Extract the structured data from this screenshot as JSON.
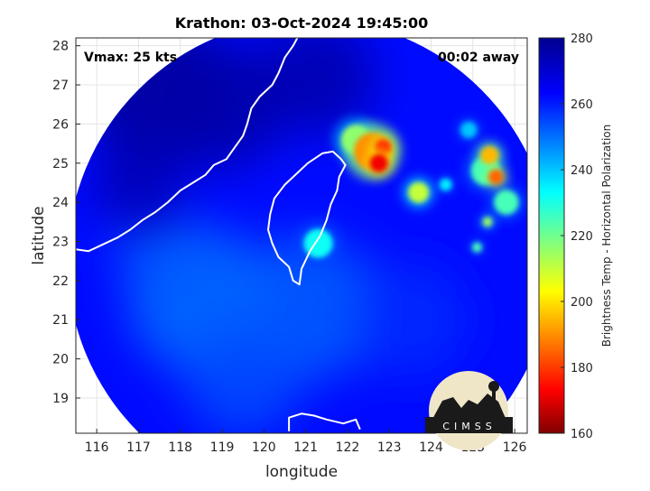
{
  "chart_data": {
    "type": "heatmap",
    "title": "Krathon: 03-Oct-2024 19:45:00",
    "xlabel": "longitude",
    "ylabel": "latitude",
    "xlim": [
      115.5,
      126.3
    ],
    "ylim": [
      18.1,
      28.2
    ],
    "xticks": [
      116,
      117,
      118,
      119,
      120,
      121,
      122,
      123,
      124,
      125,
      126
    ],
    "yticks": [
      19,
      20,
      21,
      22,
      23,
      24,
      25,
      26,
      27,
      28
    ],
    "grid": true,
    "annotations": {
      "vmax": "Vmax: 25 kts",
      "away": "00:02 away"
    },
    "colorbar": {
      "label": "Brightness Temp - Horizontal Polarization",
      "range": [
        160,
        280
      ],
      "ticks": [
        160,
        180,
        200,
        220,
        240,
        260,
        280
      ],
      "colormap": "jet"
    },
    "footprint": {
      "center_lon": 121.1,
      "center_lat": 22.5,
      "radius_deg": 5.8
    },
    "background_value": 262,
    "cold_features": [
      {
        "lon": 122.6,
        "lat": 25.3,
        "value": 190,
        "size": 0.45
      },
      {
        "lon": 122.75,
        "lat": 25.0,
        "value": 172,
        "size": 0.22
      },
      {
        "lon": 122.85,
        "lat": 25.4,
        "value": 178,
        "size": 0.2
      },
      {
        "lon": 122.2,
        "lat": 25.6,
        "value": 215,
        "size": 0.35
      },
      {
        "lon": 123.7,
        "lat": 24.25,
        "value": 210,
        "size": 0.25
      },
      {
        "lon": 125.4,
        "lat": 25.2,
        "value": 195,
        "size": 0.22
      },
      {
        "lon": 125.55,
        "lat": 24.65,
        "value": 185,
        "size": 0.18
      },
      {
        "lon": 125.3,
        "lat": 24.8,
        "value": 225,
        "size": 0.35
      },
      {
        "lon": 125.8,
        "lat": 24.0,
        "value": 225,
        "size": 0.3
      },
      {
        "lon": 125.35,
        "lat": 23.5,
        "value": 215,
        "size": 0.12
      },
      {
        "lon": 125.1,
        "lat": 22.85,
        "value": 225,
        "size": 0.12
      },
      {
        "lon": 121.3,
        "lat": 22.95,
        "value": 232,
        "size": 0.35
      },
      {
        "lon": 124.35,
        "lat": 24.45,
        "value": 235,
        "size": 0.15
      },
      {
        "lon": 124.9,
        "lat": 25.85,
        "value": 240,
        "size": 0.2
      }
    ],
    "warm_regions": [
      {
        "lon": 117.5,
        "lat": 26.8,
        "value": 278,
        "size": 2.6
      },
      {
        "lon": 119.0,
        "lat": 26.5,
        "value": 276,
        "size": 2.2
      },
      {
        "lon": 121.3,
        "lat": 27.2,
        "value": 275,
        "size": 2.0
      },
      {
        "lon": 117.0,
        "lat": 24.5,
        "value": 274,
        "size": 1.6
      }
    ],
    "cool_regions": [
      {
        "lon": 118.5,
        "lat": 21.5,
        "value": 250,
        "size": 2.5
      },
      {
        "lon": 121.0,
        "lat": 21.3,
        "value": 252,
        "size": 2.5
      },
      {
        "lon": 119.5,
        "lat": 19.5,
        "value": 254,
        "size": 2.0
      },
      {
        "lon": 123.5,
        "lat": 21.0,
        "value": 258,
        "size": 2.0
      },
      {
        "lon": 117.5,
        "lat": 22.8,
        "value": 253,
        "size": 1.5
      }
    ],
    "coastlines": {
      "taiwan": [
        [
          121.85,
          25.1
        ],
        [
          121.95,
          24.95
        ],
        [
          121.8,
          24.65
        ],
        [
          121.75,
          24.3
        ],
        [
          121.6,
          23.95
        ],
        [
          121.5,
          23.55
        ],
        [
          121.35,
          23.15
        ],
        [
          121.1,
          22.75
        ],
        [
          120.9,
          22.3
        ],
        [
          120.85,
          21.9
        ],
        [
          120.7,
          22.0
        ],
        [
          120.6,
          22.35
        ],
        [
          120.35,
          22.6
        ],
        [
          120.2,
          22.95
        ],
        [
          120.1,
          23.3
        ],
        [
          120.15,
          23.7
        ],
        [
          120.25,
          24.1
        ],
        [
          120.5,
          24.45
        ],
        [
          120.8,
          24.75
        ],
        [
          121.05,
          25.0
        ],
        [
          121.4,
          25.25
        ],
        [
          121.65,
          25.3
        ],
        [
          121.85,
          25.1
        ]
      ],
      "china": [
        [
          115.5,
          22.8
        ],
        [
          115.8,
          22.75
        ],
        [
          116.2,
          22.95
        ],
        [
          116.5,
          23.1
        ],
        [
          116.8,
          23.3
        ],
        [
          117.1,
          23.55
        ],
        [
          117.4,
          23.75
        ],
        [
          117.7,
          24.0
        ],
        [
          118.0,
          24.3
        ],
        [
          118.3,
          24.5
        ],
        [
          118.6,
          24.7
        ],
        [
          118.8,
          24.95
        ],
        [
          119.1,
          25.1
        ],
        [
          119.3,
          25.4
        ],
        [
          119.5,
          25.7
        ],
        [
          119.6,
          26.0
        ],
        [
          119.7,
          26.4
        ],
        [
          119.9,
          26.7
        ],
        [
          120.2,
          27.0
        ],
        [
          120.35,
          27.3
        ],
        [
          120.5,
          27.7
        ],
        [
          120.7,
          28.0
        ],
        [
          120.8,
          28.2
        ]
      ],
      "luzon": [
        [
          120.6,
          18.15
        ],
        [
          120.6,
          18.5
        ],
        [
          120.9,
          18.6
        ],
        [
          121.2,
          18.55
        ],
        [
          121.5,
          18.45
        ],
        [
          121.9,
          18.35
        ],
        [
          122.2,
          18.45
        ],
        [
          122.3,
          18.2
        ]
      ]
    },
    "logo_text": "CIMSS"
  }
}
